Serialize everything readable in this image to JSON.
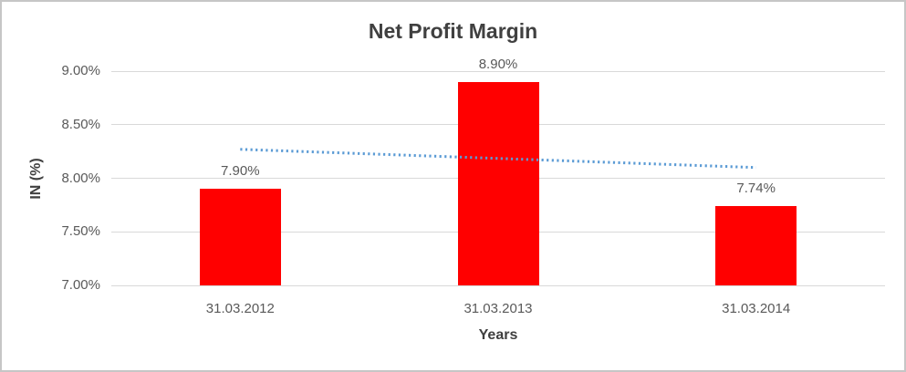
{
  "chart_data": {
    "type": "bar",
    "title": "Net Profit Margin",
    "xlabel": "Years",
    "ylabel": "IN (%)",
    "categories": [
      "31.03.2012",
      "31.03.2013",
      "31.03.2014"
    ],
    "series": [
      {
        "name": "Net Profit Margin",
        "values": [
          7.9,
          8.9,
          7.74
        ]
      }
    ],
    "data_labels": [
      "7.90%",
      "8.90%",
      "7.74%"
    ],
    "y_ticks": [
      {
        "value": 7.0,
        "label": "7.00%"
      },
      {
        "value": 7.5,
        "label": "7.50%"
      },
      {
        "value": 8.0,
        "label": "8.00%"
      },
      {
        "value": 8.5,
        "label": "8.50%"
      },
      {
        "value": 9.0,
        "label": "9.00%"
      }
    ],
    "ylim": [
      7.0,
      9.0
    ],
    "grid": true,
    "legend": "none",
    "bar_color": "#FF0000",
    "trendline": {
      "type": "linear",
      "style": "dotted",
      "color": "#5B9BD5",
      "start_value": 8.27,
      "end_value": 8.1
    },
    "colors": {
      "background": "#FFFFFF",
      "canvas_border": "#C6C6C6",
      "grid": "#D9D9D9",
      "tick_text": "#595959",
      "title_text": "#404040",
      "axis_title_text": "#3F3F3F"
    }
  }
}
